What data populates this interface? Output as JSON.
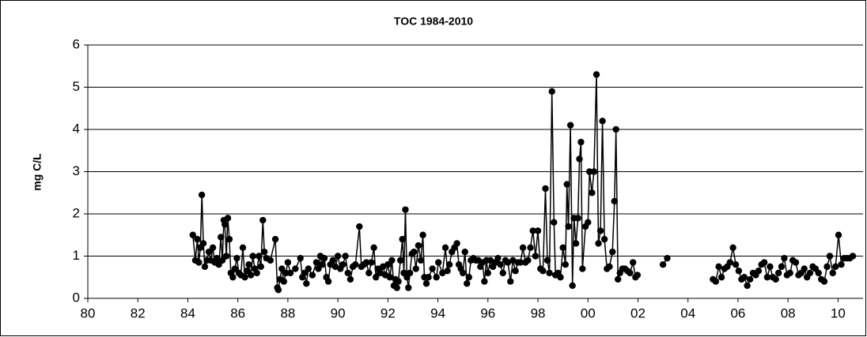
{
  "chart_data": {
    "type": "line",
    "title": "TOC 1984-2010",
    "y_label": "mg C/L",
    "color": "#000000",
    "marker": "circle",
    "grid": true,
    "xlim": [
      1980,
      2011
    ],
    "ylim": [
      0,
      6
    ],
    "yticks": [
      0,
      1,
      2,
      3,
      4,
      5,
      6
    ],
    "xticks": [
      {
        "value": 1980,
        "label": "80"
      },
      {
        "value": 1982,
        "label": "82"
      },
      {
        "value": 1984,
        "label": "84"
      },
      {
        "value": 1986,
        "label": "86"
      },
      {
        "value": 1988,
        "label": "88"
      },
      {
        "value": 1990,
        "label": "90"
      },
      {
        "value": 1992,
        "label": "92"
      },
      {
        "value": 1994,
        "label": "94"
      },
      {
        "value": 1996,
        "label": "96"
      },
      {
        "value": 1998,
        "label": "98"
      },
      {
        "value": 2000,
        "label": "00"
      },
      {
        "value": 2002,
        "label": "02"
      },
      {
        "value": 2004,
        "label": "04"
      },
      {
        "value": 2006,
        "label": "06"
      },
      {
        "value": 2008,
        "label": "08"
      },
      {
        "value": 2010,
        "label": "10"
      }
    ],
    "x": [
      1984.2,
      1984.3,
      1984.38,
      1984.44,
      1984.5,
      1984.56,
      1984.62,
      1984.68,
      1984.76,
      1984.84,
      1984.92,
      1985.0,
      1985.08,
      1985.16,
      1985.24,
      1985.32,
      1985.38,
      1985.44,
      1985.48,
      1985.54,
      1985.6,
      1985.66,
      1985.72,
      1985.8,
      1985.88,
      1985.96,
      1986.04,
      1986.12,
      1986.2,
      1986.28,
      1986.36,
      1986.44,
      1986.52,
      1986.6,
      1986.68,
      1986.76,
      1986.84,
      1986.92,
      1987.0,
      1987.06,
      1987.14,
      1987.3,
      1987.5,
      1987.58,
      1987.62,
      1987.68,
      1987.76,
      1987.84,
      1987.92,
      1988.0,
      1988.1,
      1988.3,
      1988.5,
      1988.58,
      1988.66,
      1988.74,
      1988.82,
      1988.98,
      1989.14,
      1989.22,
      1989.3,
      1989.38,
      1989.46,
      1989.54,
      1989.62,
      1989.7,
      1989.8,
      1989.9,
      1990.0,
      1990.1,
      1990.2,
      1990.3,
      1990.4,
      1990.5,
      1990.6,
      1990.7,
      1990.86,
      1990.94,
      1991.04,
      1991.14,
      1991.24,
      1991.34,
      1991.44,
      1991.52,
      1991.6,
      1991.7,
      1991.8,
      1991.9,
      1992.0,
      1992.08,
      1992.16,
      1992.24,
      1992.3,
      1992.36,
      1992.42,
      1992.5,
      1992.58,
      1992.64,
      1992.7,
      1992.76,
      1992.82,
      1992.88,
      1992.96,
      1993.04,
      1993.12,
      1993.22,
      1993.32,
      1993.4,
      1993.46,
      1993.54,
      1993.62,
      1993.78,
      1993.94,
      1994.02,
      1994.18,
      1994.3,
      1994.38,
      1994.46,
      1994.56,
      1994.66,
      1994.76,
      1994.84,
      1994.92,
      1995.0,
      1995.08,
      1995.16,
      1995.24,
      1995.32,
      1995.42,
      1995.52,
      1995.62,
      1995.7,
      1995.78,
      1995.86,
      1995.94,
      1996.0,
      1996.1,
      1996.2,
      1996.3,
      1996.4,
      1996.5,
      1996.6,
      1996.7,
      1996.8,
      1996.9,
      1997.0,
      1997.1,
      1997.2,
      1997.3,
      1997.4,
      1997.5,
      1997.6,
      1997.7,
      1997.8,
      1997.9,
      1998.0,
      1998.1,
      1998.2,
      1998.3,
      1998.38,
      1998.46,
      1998.56,
      1998.64,
      1998.7,
      1998.8,
      1998.9,
      1999.0,
      1999.1,
      1999.16,
      1999.22,
      1999.3,
      1999.38,
      1999.44,
      1999.52,
      1999.6,
      1999.66,
      1999.72,
      1999.78,
      1999.9,
      2000.0,
      2000.06,
      2000.16,
      2000.24,
      2000.34,
      2000.42,
      2000.5,
      2000.58,
      2000.66,
      2000.76,
      2000.86,
      2000.98,
      2001.06,
      2001.12,
      2001.2,
      2001.28,
      2001.38,
      2001.48,
      2001.58,
      2001.68,
      2001.8,
      2001.9,
      2001.98,
      2002.5,
      2003.0,
      2003.17,
      2004.0,
      2005.0,
      2005.11,
      2005.23,
      2005.34,
      2005.46,
      2005.57,
      2005.68,
      2005.8,
      2005.91,
      2006.03,
      2006.14,
      2006.25,
      2006.37,
      2006.48,
      2006.6,
      2006.71,
      2006.82,
      2006.94,
      2007.05,
      2007.17,
      2007.28,
      2007.39,
      2007.51,
      2007.62,
      2007.74,
      2007.85,
      2007.96,
      2008.08,
      2008.19,
      2008.31,
      2008.42,
      2008.53,
      2008.65,
      2008.76,
      2008.88,
      2008.99,
      2009.1,
      2009.22,
      2009.33,
      2009.45,
      2009.56,
      2009.67,
      2009.79,
      2009.9,
      2010.02,
      2010.13,
      2010.24,
      2010.36,
      2010.47,
      2010.59
    ],
    "values": [
      1.5,
      0.9,
      1.4,
      0.85,
      1.2,
      2.45,
      1.3,
      0.75,
      0.9,
      1.1,
      0.9,
      1.2,
      0.85,
      0.95,
      0.8,
      1.45,
      0.9,
      1.85,
      1.75,
      1.0,
      1.9,
      1.4,
      0.6,
      0.5,
      0.7,
      0.95,
      0.6,
      0.55,
      1.2,
      0.5,
      0.65,
      0.8,
      0.55,
      1.0,
      0.7,
      0.6,
      1.0,
      0.75,
      1.85,
      1.1,
      0.95,
      0.9,
      1.4,
      0.25,
      0.2,
      0.45,
      0.7,
      0.4,
      0.6,
      0.85,
      0.6,
      0.7,
      0.95,
      0.5,
      0.6,
      0.35,
      0.7,
      0.55,
      0.85,
      0.7,
      1.0,
      0.8,
      0.95,
      0.5,
      0.4,
      0.8,
      0.9,
      0.75,
      1.0,
      0.7,
      0.8,
      1.0,
      0.6,
      0.45,
      0.75,
      0.8,
      1.7,
      0.75,
      0.8,
      0.85,
      0.6,
      0.85,
      1.2,
      0.5,
      0.7,
      0.6,
      0.75,
      0.55,
      0.8,
      0.5,
      0.9,
      0.3,
      0.45,
      0.25,
      0.4,
      0.9,
      1.4,
      0.6,
      2.1,
      0.5,
      0.25,
      0.6,
      1.05,
      1.1,
      0.7,
      1.25,
      0.9,
      1.5,
      0.5,
      0.35,
      0.5,
      0.7,
      0.5,
      0.85,
      0.6,
      1.2,
      0.65,
      0.8,
      1.1,
      1.2,
      1.3,
      0.8,
      0.7,
      0.6,
      1.1,
      0.35,
      0.5,
      0.9,
      0.95,
      0.9,
      0.9,
      0.75,
      0.85,
      0.4,
      0.9,
      0.6,
      0.9,
      0.75,
      0.85,
      0.95,
      0.8,
      0.6,
      0.9,
      0.85,
      0.4,
      0.9,
      0.65,
      0.85,
      0.85,
      1.2,
      0.85,
      0.9,
      1.2,
      1.6,
      1.0,
      1.6,
      0.7,
      0.65,
      2.6,
      0.9,
      0.6,
      4.9,
      1.8,
      0.55,
      0.6,
      0.5,
      1.2,
      0.8,
      2.7,
      1.7,
      4.1,
      0.3,
      1.9,
      1.3,
      1.9,
      3.3,
      3.7,
      0.7,
      1.7,
      1.8,
      3.0,
      2.5,
      3.0,
      5.3,
      1.3,
      1.6,
      4.2,
      1.4,
      0.7,
      0.75,
      1.1,
      2.3,
      4.0,
      0.45,
      0.6,
      0.7,
      0.7,
      0.65,
      0.6,
      0.85,
      0.5,
      0.55,
      null,
      0.8,
      0.95,
      null,
      0.45,
      0.4,
      0.75,
      0.5,
      0.7,
      0.75,
      0.85,
      1.2,
      0.8,
      0.65,
      0.45,
      0.5,
      0.3,
      0.45,
      0.6,
      0.55,
      0.65,
      0.8,
      0.85,
      0.5,
      0.75,
      0.5,
      0.45,
      0.6,
      0.75,
      0.95,
      0.55,
      0.6,
      0.9,
      0.85,
      0.55,
      0.6,
      0.7,
      0.5,
      0.6,
      0.75,
      0.7,
      0.6,
      0.45,
      0.4,
      0.75,
      1.0,
      0.6,
      0.75,
      1.5,
      0.8,
      0.95,
      0.95,
      0.95,
      1.0
    ]
  }
}
